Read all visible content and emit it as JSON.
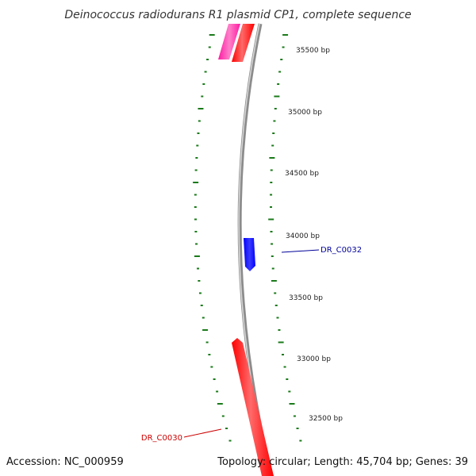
{
  "title": "Deinococcus radiodurans R1 plasmid CP1, complete sequence",
  "footer": {
    "accession": "Accession: NC_000959",
    "summary": "Topology: circular; Length: 45,704 bp; Genes: 39"
  },
  "colors": {
    "backbone": "#8c8c8c",
    "tick": "#1a7a1a",
    "gene_forward_red": "#ff0000",
    "gene_forward_magenta": "#ff1aa3",
    "gene_reverse_blue": "#0000ff",
    "label_red": "#cc0000",
    "label_blue": "#000099"
  },
  "scale": {
    "tick_labels": [
      {
        "bp": 35500,
        "label": "35500 bp"
      },
      {
        "bp": 35000,
        "label": "35000 bp"
      },
      {
        "bp": 34500,
        "label": "34500 bp"
      },
      {
        "bp": 34000,
        "label": "34000 bp"
      },
      {
        "bp": 33500,
        "label": "33500 bp"
      },
      {
        "bp": 33000,
        "label": "33000 bp"
      },
      {
        "bp": 32500,
        "label": "32500 bp"
      }
    ]
  },
  "genes": [
    {
      "name": "DR_C0032",
      "color": "blue",
      "labeled": true
    },
    {
      "name": "DR_C0030",
      "color": "red",
      "labeled": true
    }
  ]
}
